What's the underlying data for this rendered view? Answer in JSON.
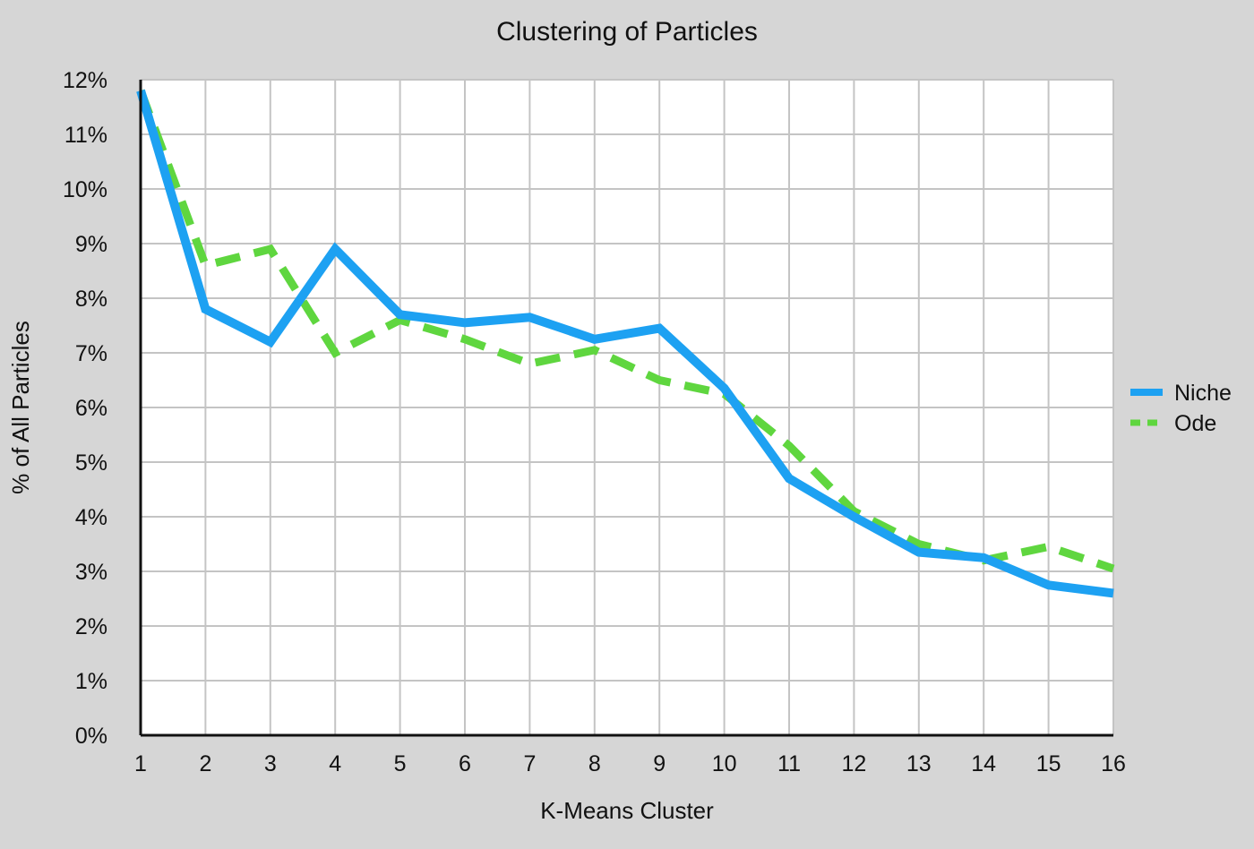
{
  "chart_data": {
    "type": "line",
    "title": "Clustering of Particles",
    "xlabel": "K-Means Cluster",
    "ylabel": "% of All Particles",
    "x": [
      1,
      2,
      3,
      4,
      5,
      6,
      7,
      8,
      9,
      10,
      11,
      12,
      13,
      14,
      15,
      16
    ],
    "x_tick_labels": [
      "1",
      "2",
      "3",
      "4",
      "5",
      "6",
      "7",
      "8",
      "9",
      "10",
      "11",
      "12",
      "13",
      "14",
      "15",
      "16"
    ],
    "ylim": [
      0,
      12
    ],
    "y_ticks": [
      0,
      1,
      2,
      3,
      4,
      5,
      6,
      7,
      8,
      9,
      10,
      11,
      12
    ],
    "y_tick_labels": [
      "0%",
      "1%",
      "2%",
      "3%",
      "4%",
      "5%",
      "6%",
      "7%",
      "8%",
      "9%",
      "10%",
      "11%",
      "12%"
    ],
    "grid": true,
    "legend_position": "right",
    "series": [
      {
        "name": "Niche",
        "style": "solid",
        "color": "#1da1f2",
        "values": [
          11.8,
          7.8,
          7.2,
          8.9,
          7.7,
          7.55,
          7.65,
          7.25,
          7.45,
          6.35,
          4.7,
          4.0,
          3.35,
          3.25,
          2.75,
          2.6
        ]
      },
      {
        "name": "Ode",
        "style": "dashed",
        "color": "#5fd63f",
        "values": [
          11.8,
          8.6,
          8.9,
          7.0,
          7.6,
          7.25,
          6.8,
          7.05,
          6.5,
          6.25,
          5.3,
          4.1,
          3.5,
          3.2,
          3.45,
          3.05
        ]
      }
    ]
  }
}
